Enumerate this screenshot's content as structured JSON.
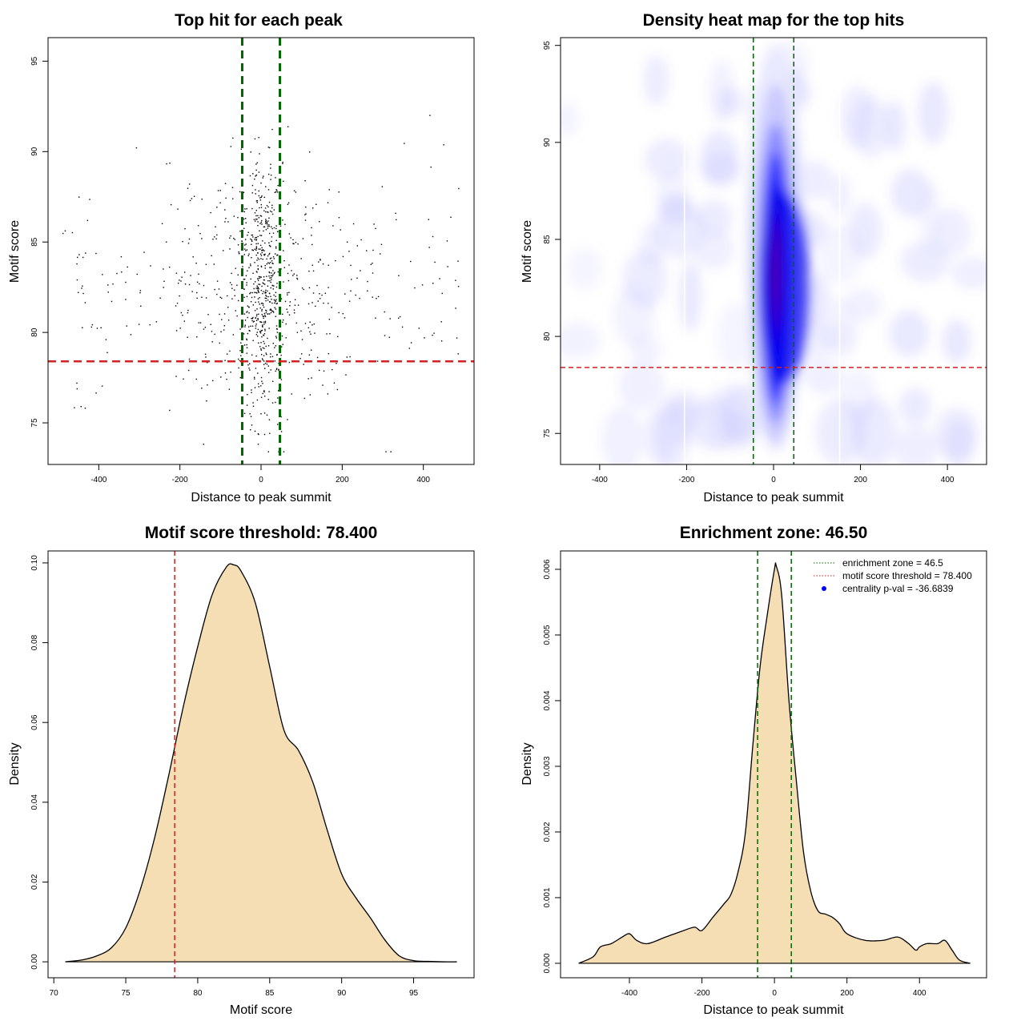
{
  "colors": {
    "zone_line": "#006400",
    "threshold_line": "#d42020",
    "density_fill": "#f5deb3",
    "point": "#000000",
    "legend_dot": "#0000ff"
  },
  "chart_data": [
    {
      "type": "scatter",
      "title": "Top hit for each peak",
      "xlabel": "Distance to peak summit",
      "ylabel": "Motif score",
      "xlim": [
        -525,
        525
      ],
      "ylim": [
        72.7,
        96.3
      ],
      "xticks": [
        -400,
        -200,
        0,
        200,
        400
      ],
      "yticks": [
        75,
        80,
        85,
        90,
        95
      ],
      "vlines": [
        -46.5,
        46.5
      ],
      "hline": 78.4,
      "points_description": "about 1000 top-hit points, dense around distance 0 and scores 80-88",
      "summary": {
        "n_points": 1000,
        "x_center": 0,
        "x_spread_core": 50,
        "y_mean": 82.5,
        "y_sd": 3.8
      }
    },
    {
      "type": "heatmap",
      "title": "Density heat map for the top hits",
      "xlabel": "Distance to peak summit",
      "ylabel": "Motif score",
      "xlim": [
        -490,
        490
      ],
      "ylim": [
        73.4,
        95.4
      ],
      "xticks": [
        -400,
        -200,
        0,
        200,
        400
      ],
      "yticks": [
        75,
        80,
        85,
        90,
        95
      ],
      "vlines": [
        -46.5,
        46.5
      ],
      "hline": 78.4,
      "color_scale": [
        "white",
        "blue",
        "red"
      ],
      "hotspot": {
        "x": 5,
        "y": 83.5
      }
    },
    {
      "type": "area",
      "title": "Motif score threshold: 78.400",
      "xlabel": "Motif score",
      "ylabel": "Density",
      "xlim": [
        69.6,
        99.2
      ],
      "ylim": [
        -0.004,
        0.103
      ],
      "xticks": [
        70,
        75,
        80,
        85,
        90,
        95
      ],
      "yticks": [
        0.0,
        0.02,
        0.04,
        0.06,
        0.08,
        0.1
      ],
      "ytick_labels": [
        "0.00",
        "0.02",
        "0.04",
        "0.06",
        "0.08",
        "0.10"
      ],
      "vline": 78.4,
      "x": [
        70.8,
        72,
        73,
        74,
        75,
        76,
        77,
        78,
        79,
        80,
        81,
        82,
        82.5,
        83,
        84,
        85,
        86,
        87,
        88,
        89,
        90,
        91,
        92,
        93,
        94,
        95,
        96,
        97,
        98
      ],
      "y": [
        0.0,
        0.0005,
        0.0015,
        0.0035,
        0.0085,
        0.018,
        0.031,
        0.047,
        0.064,
        0.079,
        0.092,
        0.099,
        0.0995,
        0.098,
        0.09,
        0.074,
        0.058,
        0.053,
        0.045,
        0.033,
        0.022,
        0.016,
        0.011,
        0.0055,
        0.0015,
        0.0003,
        0.0001,
        0.0,
        0.0
      ]
    },
    {
      "type": "area",
      "title": "Enrichment zone: 46.50",
      "xlabel": "Distance to peak summit",
      "ylabel": "Density",
      "xlim": [
        -590,
        585
      ],
      "ylim": [
        -0.00022,
        0.00628
      ],
      "xticks": [
        -400,
        -200,
        0,
        200,
        400
      ],
      "yticks": [
        0,
        0.001,
        0.002,
        0.003,
        0.004,
        0.005,
        0.006
      ],
      "ytick_labels": [
        "0.000",
        "0.001",
        "0.002",
        "0.003",
        "0.004",
        "0.005",
        "0.006"
      ],
      "vlines": [
        -46.5,
        46.5
      ],
      "legend": [
        {
          "label": "enrichment zone = 46.5",
          "style": "dotted-green"
        },
        {
          "label": "motif score threshold = 78.400",
          "style": "dotted-red"
        },
        {
          "label": "centrality p-val = -36.6839",
          "style": "blue-dot"
        }
      ],
      "legend_position": "top-right",
      "x": [
        -540,
        -500,
        -480,
        -450,
        -420,
        -400,
        -380,
        -350,
        -300,
        -250,
        -220,
        -200,
        -170,
        -140,
        -120,
        -100,
        -80,
        -60,
        -40,
        -20,
        0,
        5,
        20,
        40,
        60,
        80,
        100,
        120,
        140,
        160,
        180,
        200,
        250,
        300,
        340,
        370,
        390,
        400,
        420,
        450,
        470,
        490,
        510,
        540
      ],
      "y": [
        0.0,
        0.0001,
        0.00025,
        0.0003,
        0.0004,
        0.00045,
        0.00035,
        0.0003,
        0.0004,
        0.0005,
        0.00055,
        0.0005,
        0.0007,
        0.0009,
        0.00105,
        0.0014,
        0.002,
        0.0033,
        0.0045,
        0.0053,
        0.006,
        0.00605,
        0.0056,
        0.004,
        0.0028,
        0.0017,
        0.0011,
        0.0008,
        0.00075,
        0.0007,
        0.0006,
        0.00045,
        0.00035,
        0.00035,
        0.0004,
        0.0003,
        0.0002,
        0.00025,
        0.0003,
        0.0003,
        0.00035,
        0.0002,
        5e-05,
        0.0
      ]
    }
  ]
}
